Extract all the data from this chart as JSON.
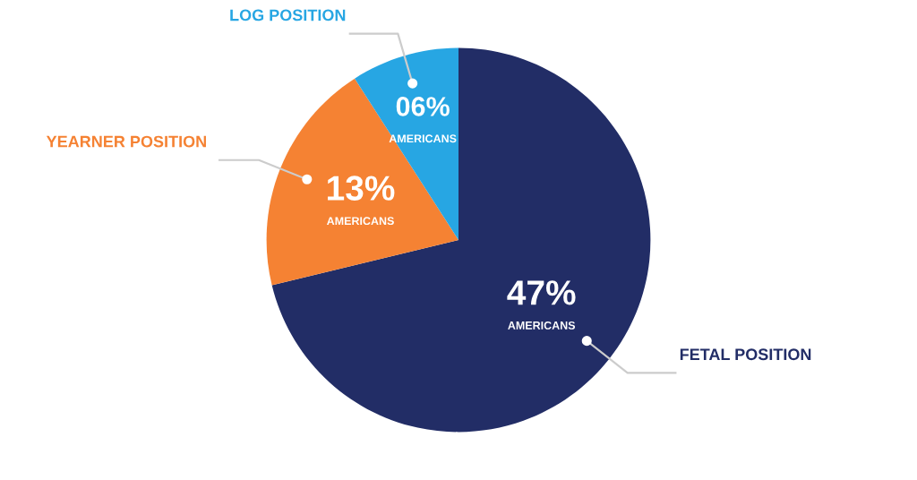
{
  "chart_data": {
    "type": "pie",
    "categories": [
      "FETAL POSITION",
      "YEARNER POSITION",
      "LOG POSITION"
    ],
    "values": [
      47,
      13,
      6
    ],
    "colors": [
      "#222d66",
      "#f58233",
      "#27a6e3"
    ],
    "value_labels": [
      "47%\nAMERICANS",
      "13%\nAMERICANS",
      "06%\nAMERICANS"
    ],
    "legend": false
  }
}
